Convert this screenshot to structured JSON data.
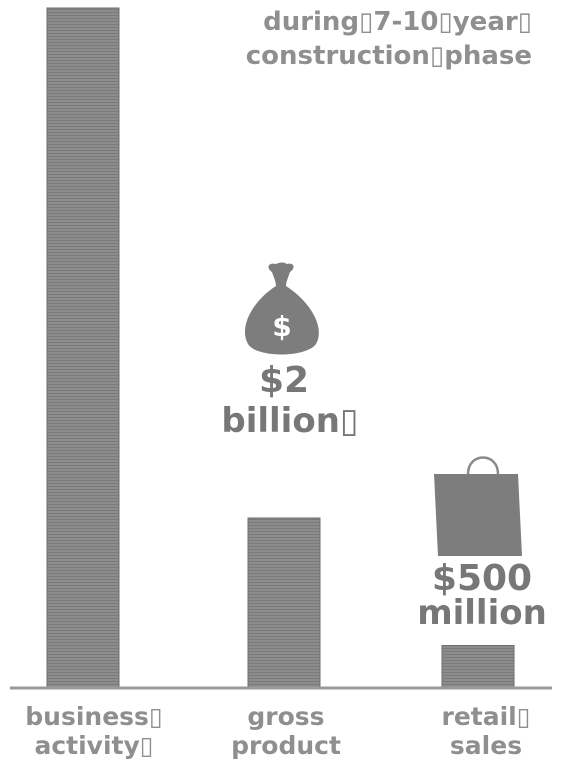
{
  "chart_data": {
    "type": "bar",
    "subtitle_lines": [
      "during▯7-10▯year▯",
      "construction▯phase"
    ],
    "categories": [
      {
        "line1": "business▯",
        "line2": "activity▯"
      },
      {
        "line1": "gross",
        "line2": "product"
      },
      {
        "line1": "retail▯",
        "line2": "sales"
      }
    ],
    "values": [
      8,
      2,
      0.5
    ],
    "value_unit": "billion",
    "value_labels": [
      {
        "line1": "",
        "line2": ""
      },
      {
        "line1": "$2",
        "line2": "billion▯"
      },
      {
        "line1": "$500",
        "line2": "million"
      }
    ],
    "icons": [
      "",
      "money-bag-icon",
      "shopping-bag-icon"
    ],
    "money_bag_symbol": "$",
    "grid": false,
    "colors": {
      "bar": "#8a8a8a",
      "bar_stroke": "#6e6e6e",
      "text": "#8f8f8f",
      "value_text": "#777777",
      "baseline": "#9a9a9a",
      "icon": "#7d7d7d"
    }
  }
}
